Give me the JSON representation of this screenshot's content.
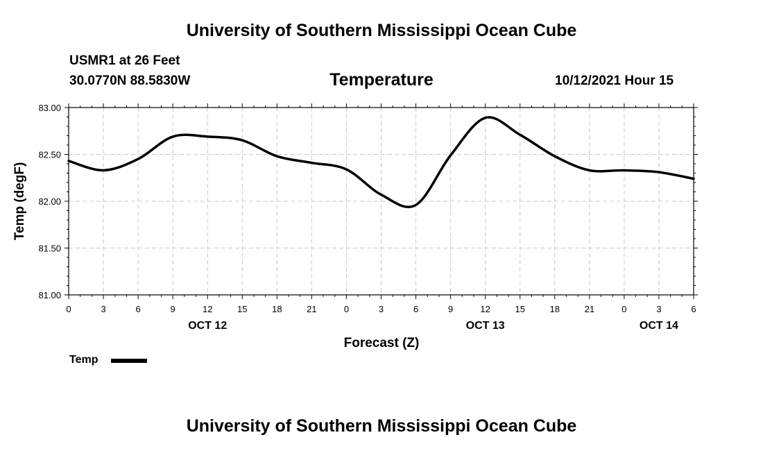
{
  "header": {
    "title_top": "University of Southern Mississippi Ocean Cube",
    "station": "USMR1 at 26 Feet",
    "coords": "30.0770N  88.5830W",
    "chart_title": "Temperature",
    "timestamp": "10/12/2021 Hour 15",
    "title_bottom": "University of Southern Mississippi Ocean Cube"
  },
  "legend": {
    "label": "Temp",
    "color": "#000000"
  },
  "chart_data": {
    "type": "line",
    "title": "Temperature",
    "xlabel": "Forecast (Z)",
    "ylabel": "Temp (degF)",
    "ylim": [
      81.0,
      83.0
    ],
    "yticks": [
      "81.00",
      "81.50",
      "82.00",
      "82.50",
      "83.00"
    ],
    "xlim": [
      0,
      54
    ],
    "xtick_labels": [
      "0",
      "3",
      "6",
      "9",
      "12",
      "15",
      "18",
      "21",
      "0",
      "3",
      "6",
      "9",
      "12",
      "15",
      "18",
      "21",
      "0",
      "3",
      "6"
    ],
    "date_labels": [
      {
        "hour": 12,
        "label": "OCT 12"
      },
      {
        "hour": 36,
        "label": "OCT 13"
      },
      {
        "hour": 51,
        "label": "OCT 14"
      }
    ],
    "grid": true,
    "series": [
      {
        "name": "Temp",
        "color": "#000000",
        "x": [
          0,
          3,
          6,
          9,
          12,
          15,
          18,
          21,
          24,
          27,
          30,
          33,
          36,
          39,
          42,
          45,
          48,
          51,
          54
        ],
        "values": [
          82.43,
          82.33,
          82.45,
          82.69,
          82.69,
          82.65,
          82.48,
          82.41,
          82.34,
          82.07,
          81.96,
          82.49,
          82.89,
          82.71,
          82.48,
          82.33,
          82.33,
          82.31,
          82.24
        ]
      }
    ]
  }
}
